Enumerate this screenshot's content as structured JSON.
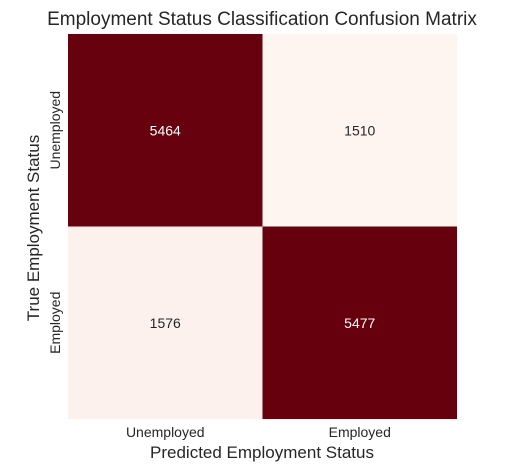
{
  "chart_data": {
    "type": "heatmap",
    "title": "Employment Status Classification Confusion Matrix",
    "xlabel": "Predicted Employment Status",
    "ylabel": "True Employment Status",
    "x_categories": [
      "Unemployed",
      "Employed"
    ],
    "y_categories": [
      "Unemployed",
      "Employed"
    ],
    "values": [
      [
        5464,
        1510
      ],
      [
        1576,
        5477
      ]
    ],
    "colormap": {
      "low": "#fff5f0",
      "high": "#67000d"
    },
    "color_range": [
      1510,
      5477
    ],
    "show_values": true,
    "colorbar": false,
    "grid": false
  }
}
